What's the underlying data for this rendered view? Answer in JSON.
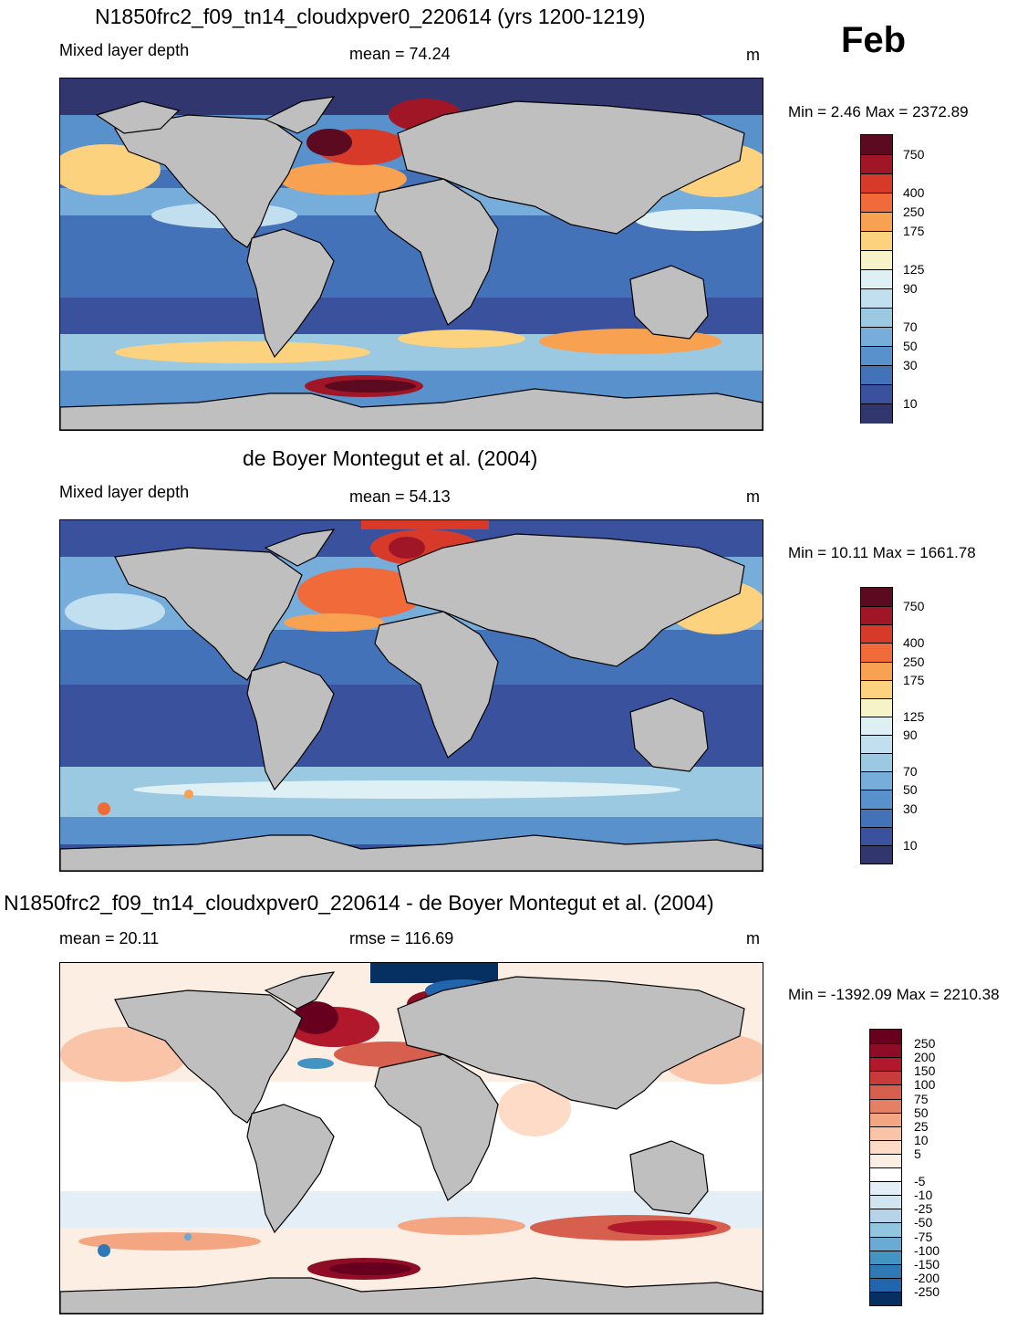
{
  "header": {
    "title": "N1850frc2_f09_tn14_cloudxpver0_220614 (yrs 1200-1219)",
    "month": "Feb"
  },
  "panels": [
    {
      "id": "model",
      "variable": "Mixed layer depth",
      "stat": "mean =  74.24",
      "unit": "m",
      "minmax": "Min =   2.46 Max = 2372.89",
      "colorbar": {
        "labels": [
          "750",
          "400",
          "250",
          "175",
          "125",
          "90",
          "70",
          "50",
          "30",
          "10"
        ],
        "colors": [
          "#5b0a20",
          "#a01627",
          "#d83a2a",
          "#f06a3a",
          "#f8a150",
          "#fdd27e",
          "#f6f3c9",
          "#dff0f4",
          "#c1dfee",
          "#9cc9e2",
          "#77addb",
          "#5991cc",
          "#4472b8",
          "#3a529e",
          "#32366f"
        ]
      }
    },
    {
      "id": "obs",
      "title": "de Boyer Montegut et al. (2004)",
      "variable": "Mixed layer depth",
      "stat": "mean =  54.13",
      "unit": "m",
      "minmax": "Min =  10.11 Max = 1661.78",
      "colorbar": {
        "labels": [
          "750",
          "400",
          "250",
          "175",
          "125",
          "90",
          "70",
          "50",
          "30",
          "10"
        ],
        "colors": [
          "#5b0a20",
          "#a01627",
          "#d83a2a",
          "#f06a3a",
          "#f8a150",
          "#fdd27e",
          "#f6f3c9",
          "#dff0f4",
          "#c1dfee",
          "#9cc9e2",
          "#77addb",
          "#5991cc",
          "#4472b8",
          "#3a529e",
          "#32366f"
        ]
      }
    },
    {
      "id": "diff",
      "title": "N1850frc2_f09_tn14_cloudxpver0_220614 - de Boyer Montegut et al. (2004)",
      "stat": "mean =  20.11",
      "rmse": "rmse = 116.69",
      "unit": "m",
      "minmax": "Min = -1392.09 Max = 2210.38",
      "colorbar": {
        "labels": [
          "250",
          "200",
          "150",
          "100",
          "75",
          "50",
          "25",
          "10",
          "5",
          "-5",
          "-10",
          "-25",
          "-50",
          "-75",
          "-100",
          "-150",
          "-200",
          "-250"
        ],
        "colors": [
          "#67001f",
          "#8e0c25",
          "#b2182b",
          "#c83b3b",
          "#d6604d",
          "#e48165",
          "#f4a582",
          "#f9c4a8",
          "#fddbc7",
          "#fdeee4",
          "#ffffff",
          "#e4eef6",
          "#d1e5f0",
          "#b5d4e9",
          "#92c5de",
          "#6aaad3",
          "#4393c3",
          "#2f79b5",
          "#2166ac",
          "#053061"
        ]
      }
    }
  ]
}
